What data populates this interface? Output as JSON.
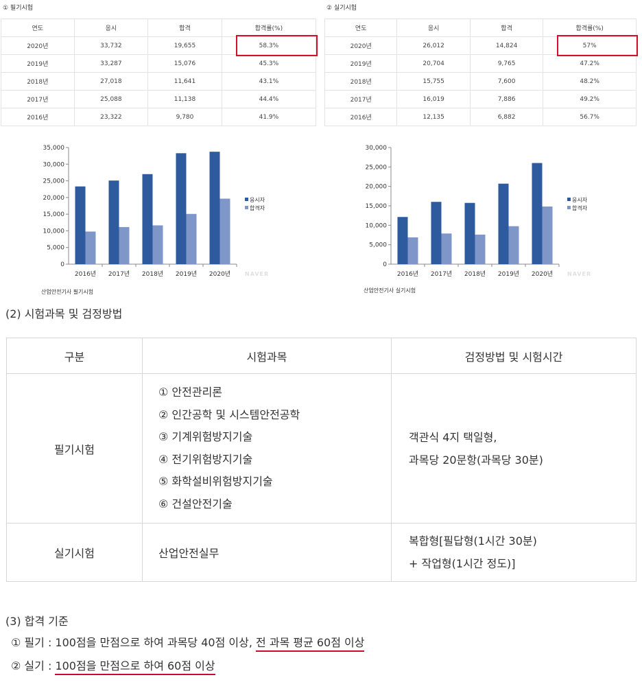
{
  "written_caption": "① 필기시험",
  "practical_caption": "② 실기시험",
  "stat_headers": [
    "연도",
    "응시",
    "합격",
    "합격률(%)"
  ],
  "written_rows": [
    [
      "2020년",
      "33,732",
      "19,655",
      "58.3%"
    ],
    [
      "2019년",
      "33,287",
      "15,076",
      "45.3%"
    ],
    [
      "2018년",
      "27,018",
      "11,641",
      "43.1%"
    ],
    [
      "2017년",
      "25,088",
      "11,138",
      "44.4%"
    ],
    [
      "2016년",
      "23,322",
      "9,780",
      "41.9%"
    ]
  ],
  "practical_rows": [
    [
      "2020년",
      "26,012",
      "14,824",
      "57%"
    ],
    [
      "2019년",
      "20,704",
      "9,765",
      "47.2%"
    ],
    [
      "2018년",
      "15,755",
      "7,600",
      "48.2%"
    ],
    [
      "2017년",
      "16,019",
      "7,886",
      "49.2%"
    ],
    [
      "2016년",
      "12,135",
      "6,882",
      "56.7%"
    ]
  ],
  "chart_data": [
    {
      "type": "bar",
      "categories": [
        "2016년",
        "2017년",
        "2018년",
        "2019년",
        "2020년"
      ],
      "series": [
        {
          "name": "응시자",
          "values": [
            23322,
            25088,
            27018,
            33287,
            33732
          ],
          "color": "#2e5a9e"
        },
        {
          "name": "합격자",
          "values": [
            9780,
            11138,
            11641,
            15076,
            19655
          ],
          "color": "#7f96c9"
        }
      ],
      "ylim": [
        0,
        35000
      ],
      "yticks": [
        "0",
        "5,000",
        "10,000",
        "15,000",
        "20,000",
        "25,000",
        "30,000",
        "35,000"
      ],
      "title": "산업안전기사 필기시험",
      "legend": "right",
      "watermark": "NAVER"
    },
    {
      "type": "bar",
      "categories": [
        "2016년",
        "2017년",
        "2018년",
        "2019년",
        "2020년"
      ],
      "series": [
        {
          "name": "응시자",
          "values": [
            12135,
            16019,
            15755,
            20704,
            26012
          ],
          "color": "#2e5a9e"
        },
        {
          "name": "합격자",
          "values": [
            6882,
            7886,
            7600,
            9765,
            14824
          ],
          "color": "#7f96c9"
        }
      ],
      "ylim": [
        0,
        30000
      ],
      "yticks": [
        "0",
        "5,000",
        "10,000",
        "15,000",
        "20,000",
        "25,000",
        "30,000"
      ],
      "title": "산업안전기사 실기시험",
      "legend": "right",
      "watermark": "NAVER"
    }
  ],
  "section2_title": "(2) 시험과목 및 검정방법",
  "subject_table": {
    "headers": [
      "구분",
      "시험과목",
      "검정방법 및 시험시간"
    ],
    "written": {
      "label": "필기시험",
      "subjects": [
        "① 안전관리론",
        "② 인간공학 및 시스템안전공학",
        "③ 기계위험방지기술",
        "④ 전기위험방지기술",
        "⑤ 화학설비위험방지기술",
        "⑥ 건설안전기술"
      ],
      "method": [
        "객관식 4지 택일형,",
        "과목당 20문항(과목당 30분)"
      ]
    },
    "practical": {
      "label": "실기시험",
      "subject": "산업안전실무",
      "method": [
        "복합형[필답형(1시간 30분)",
        "+ 작업형(1시간 정도)]"
      ]
    }
  },
  "section3_title": "(3) 합격 기준",
  "criteria": {
    "written_prefix": "① 필기 : 100점을 만점으로 하여 과목당 40점 이상, ",
    "written_underlined": "전 과목 평균 60점 이상",
    "practical_prefix": "② 실기 : ",
    "practical_underlined": "100점을 만점으로 하여 60점 이상"
  },
  "highlight_color": "#d0102d"
}
